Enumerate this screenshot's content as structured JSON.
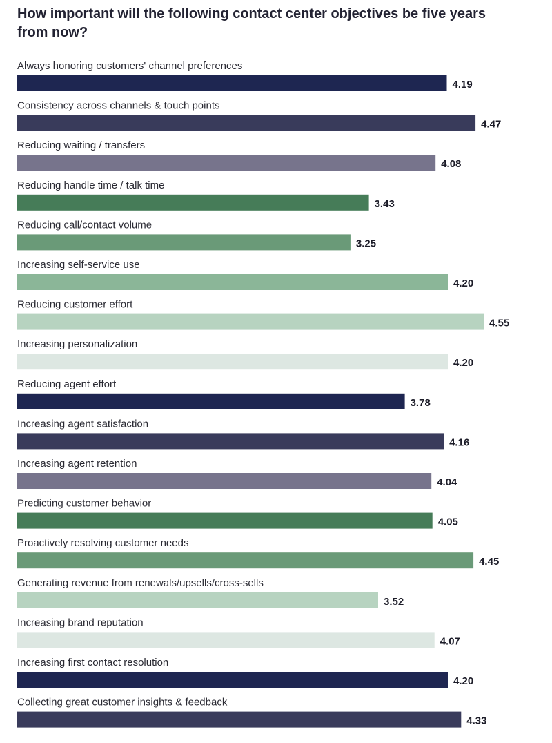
{
  "chart_data": {
    "type": "bar",
    "orientation": "horizontal",
    "title": "How important will the following contact center objectives be five years from now?",
    "xlabel": "",
    "ylabel": "",
    "xlim": [
      0,
      4.55
    ],
    "grid": false,
    "categories": [
      "Always honoring customers' channel preferences",
      "Consistency across channels & touch points",
      "Reducing waiting / transfers",
      "Reducing handle time / talk time",
      "Reducing call/contact volume",
      "Increasing self-service use",
      "Reducing customer effort",
      "Increasing personalization",
      "Reducing agent effort",
      "Increasing agent satisfaction",
      "Increasing agent retention",
      "Predicting customer behavior",
      "Proactively resolving customer needs",
      "Generating revenue from renewals/upsells/cross-sells",
      "Increasing brand reputation",
      "Increasing first contact resolution",
      "Collecting great customer insights & feedback"
    ],
    "values": [
      4.19,
      4.47,
      4.08,
      3.43,
      3.25,
      4.2,
      4.55,
      4.2,
      3.78,
      4.16,
      4.04,
      4.05,
      4.45,
      3.52,
      4.07,
      4.2,
      4.33
    ],
    "value_labels": [
      "4.19",
      "4.47",
      "4.08",
      "3.43",
      "3.25",
      "4.20",
      "4.55",
      "4.20",
      "3.78",
      "4.16",
      "4.04",
      "4.05",
      "4.45",
      "3.52",
      "4.07",
      "4.20",
      "4.33"
    ],
    "colors": [
      "#1e2651",
      "#393b5b",
      "#77748c",
      "#467c58",
      "#6a9a78",
      "#8bb698",
      "#b7d3c0",
      "#dde7e2",
      "#1e2651",
      "#393b5b",
      "#77748c",
      "#467c58",
      "#6a9a78",
      "#b7d3c0",
      "#dde7e2",
      "#1e2651",
      "#393b5b"
    ]
  }
}
